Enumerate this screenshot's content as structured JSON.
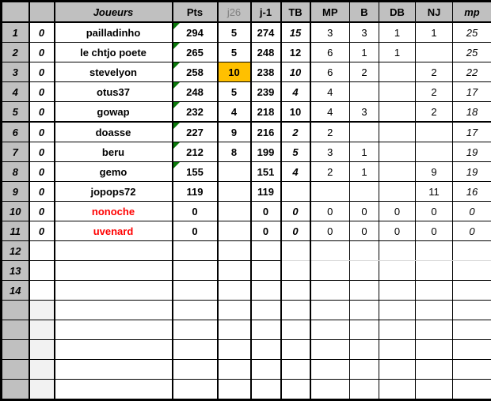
{
  "colors": {
    "header_bg": "#c0c0c0",
    "rank_col_bg": "#c0c0c0",
    "shaded_cell_bg": "#f2f2f2",
    "highlight_bg": "#ffc000",
    "red_name_text": "#ff0000",
    "muted_header_text": "#808080",
    "indicator_green": "#0b7a0b",
    "gray_gridline": "#d9d9d9",
    "grid_border": "#000000"
  },
  "table": {
    "headers": [
      {
        "label": "",
        "name": "corner-header"
      },
      {
        "label": "",
        "name": "zero-col-header"
      },
      {
        "label": "Joueurs",
        "name": "joueurs-header",
        "italic": true
      },
      {
        "label": "Pts",
        "name": "pts-header"
      },
      {
        "label": "j26",
        "name": "j26-header",
        "muted": true
      },
      {
        "label": "j-1",
        "name": "j-1-header"
      },
      {
        "label": "TB",
        "name": "tb-header"
      },
      {
        "label": "MP",
        "name": "mp-header"
      },
      {
        "label": "B",
        "name": "b-header"
      },
      {
        "label": "DB",
        "name": "db-header"
      },
      {
        "label": "NJ",
        "name": "nj-header"
      },
      {
        "label": "mp",
        "name": "mp-lower-header",
        "italic": true
      }
    ],
    "rows": [
      {
        "cells": [
          "1",
          "0",
          "pailladinho",
          "294",
          "5",
          "274",
          "15",
          "3",
          "3",
          "1",
          "1",
          "25"
        ],
        "flags": {
          "triangle": true,
          "tbItalic": true
        }
      },
      {
        "cells": [
          "2",
          "0",
          "le chtjo poete",
          "265",
          "5",
          "248",
          "12",
          "6",
          "1",
          "1",
          "",
          "25"
        ],
        "flags": {
          "triangle": true
        }
      },
      {
        "cells": [
          "3",
          "0",
          "stevelyon",
          "258",
          "10",
          "238",
          "10",
          "6",
          "2",
          "",
          "2",
          "22"
        ],
        "flags": {
          "triangle": true,
          "tbItalic": true,
          "j26Orange": true
        }
      },
      {
        "cells": [
          "4",
          "0",
          "otus37",
          "248",
          "5",
          "239",
          "4",
          "4",
          "",
          "",
          "2",
          "17"
        ],
        "flags": {
          "triangle": true,
          "tbItalic": true
        }
      },
      {
        "cells": [
          "5",
          "0",
          "gowap",
          "232",
          "4",
          "218",
          "10",
          "4",
          "3",
          "",
          "2",
          "18"
        ],
        "flags": {
          "triangle": true,
          "thickBottom": true
        }
      },
      {
        "cells": [
          "6",
          "0",
          "doasse",
          "227",
          "9",
          "216",
          "2",
          "2",
          "",
          "",
          "",
          "17"
        ],
        "flags": {
          "triangle": true,
          "tbItalic": true
        }
      },
      {
        "cells": [
          "7",
          "0",
          "beru",
          "212",
          "8",
          "199",
          "5",
          "3",
          "1",
          "",
          "",
          "19"
        ],
        "flags": {
          "triangle": true,
          "tbItalic": true
        }
      },
      {
        "cells": [
          "8",
          "0",
          "gemo",
          "155",
          "",
          "151",
          "4",
          "2",
          "1",
          "",
          "9",
          "19"
        ],
        "flags": {
          "triangle": true,
          "tbItalic": true
        }
      },
      {
        "cells": [
          "9",
          "0",
          "jopops72",
          "119",
          "",
          "119",
          "",
          "",
          "",
          "",
          "11",
          "16"
        ],
        "flags": {}
      },
      {
        "cells": [
          "10",
          "0",
          "nonoche",
          "0",
          "",
          "0",
          "0",
          "0",
          "0",
          "0",
          "0",
          "0"
        ],
        "flags": {
          "redName": true,
          "tbItalic": true
        }
      },
      {
        "cells": [
          "11",
          "0",
          "uvenard",
          "0",
          "",
          "0",
          "0",
          "0",
          "0",
          "0",
          "0",
          "0"
        ],
        "flags": {
          "redName": true,
          "tbItalic": true
        }
      },
      {
        "cells": [
          "12",
          "",
          "",
          "",
          "",
          "",
          "",
          "",
          "",
          "",
          "",
          ""
        ],
        "flags": {
          "grayDivider": true
        }
      },
      {
        "cells": [
          "13",
          "",
          "",
          "",
          "",
          "",
          "",
          "",
          "",
          "",
          "",
          ""
        ],
        "flags": {}
      },
      {
        "cells": [
          "14",
          "",
          "",
          "",
          "",
          "",
          "",
          "",
          "",
          "",
          "",
          ""
        ],
        "flags": {}
      },
      {
        "cells": [
          "",
          "",
          "",
          "",
          "",
          "",
          "",
          "",
          "",
          "",
          "",
          ""
        ],
        "flags": {
          "shadedZero": true
        }
      },
      {
        "cells": [
          "",
          "",
          "",
          "",
          "",
          "",
          "",
          "",
          "",
          "",
          "",
          ""
        ],
        "flags": {
          "shadedZero": true
        }
      },
      {
        "cells": [
          "",
          "",
          "",
          "",
          "",
          "",
          "",
          "",
          "",
          "",
          "",
          ""
        ],
        "flags": {
          "shadedZero": true
        }
      },
      {
        "cells": [
          "",
          "",
          "",
          "",
          "",
          "",
          "",
          "",
          "",
          "",
          "",
          ""
        ],
        "flags": {
          "shadedZero": true
        }
      },
      {
        "cells": [
          "",
          "",
          "",
          "",
          "",
          "",
          "",
          "",
          "",
          "",
          "",
          ""
        ],
        "flags": {
          "shadedZero": true
        }
      }
    ]
  }
}
